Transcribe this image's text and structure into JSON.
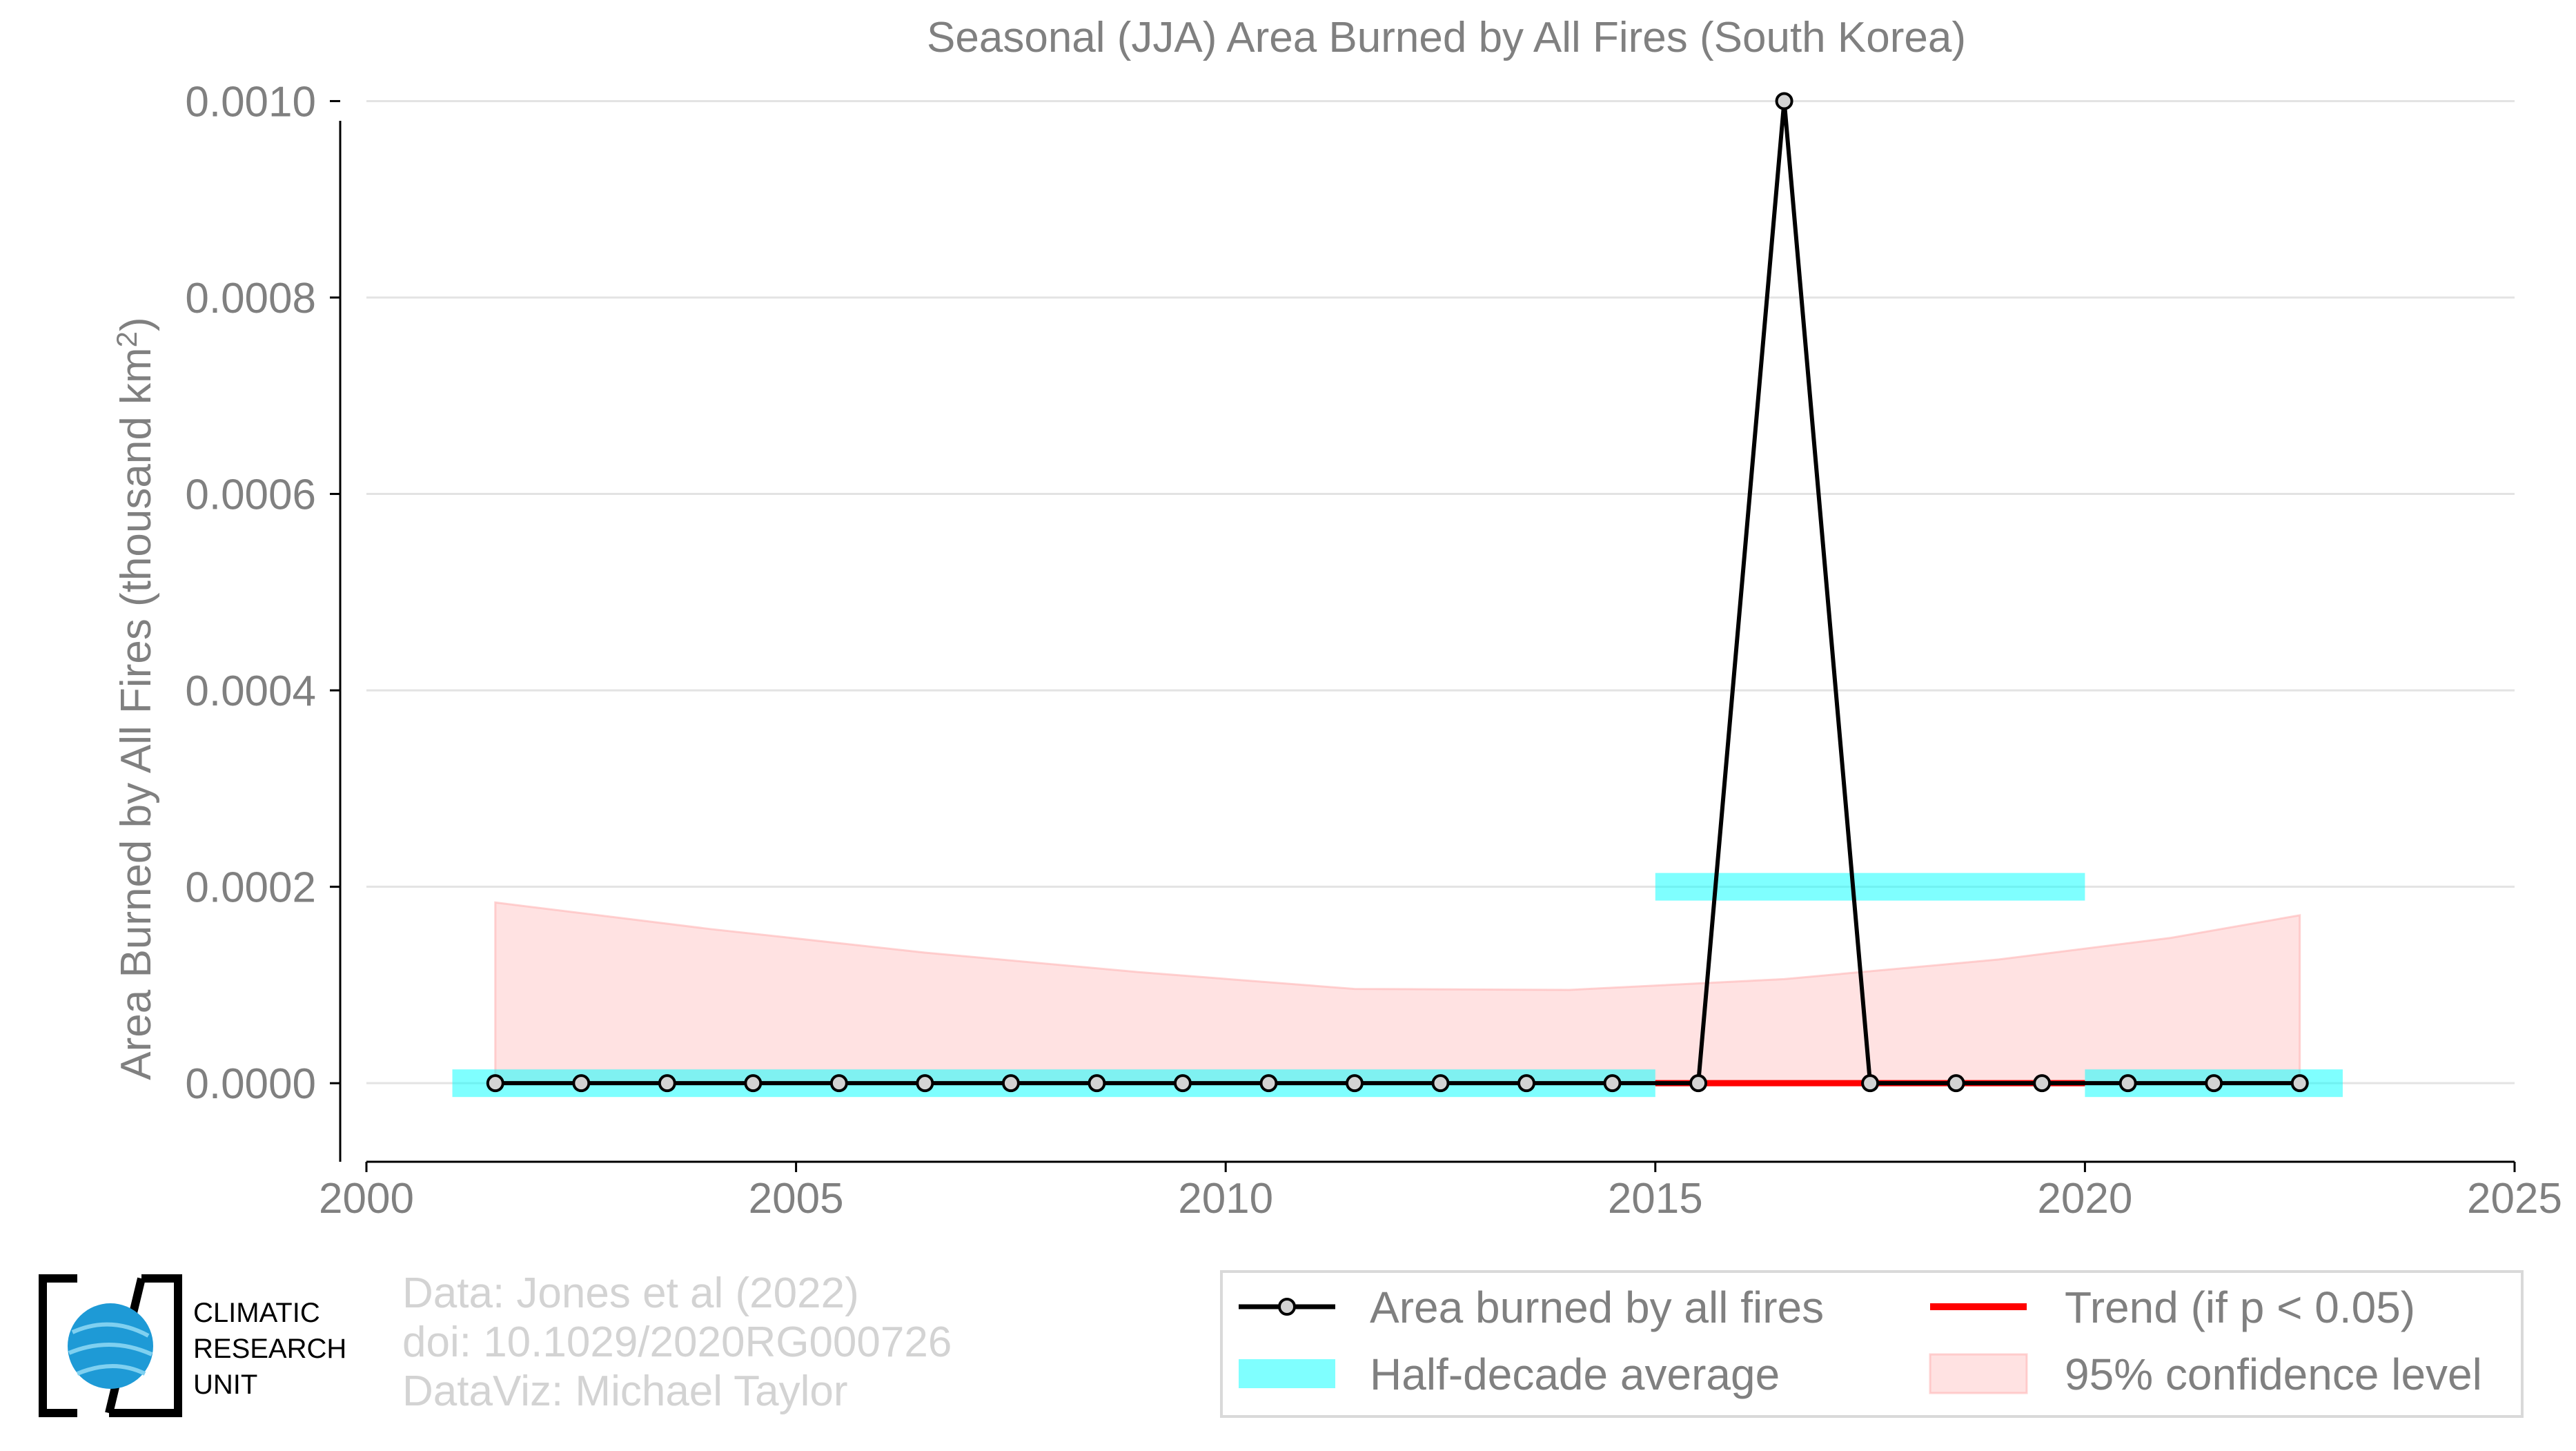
{
  "chart_data": {
    "type": "line",
    "title": "Seasonal (JJA) Area Burned by All Fires (South Korea)",
    "ylabel": "Area Burned by All Fires (thousand km",
    "ylabel_sup": "2",
    "ylabel_close": ")",
    "xlabel": "",
    "xlim": [
      2000,
      2025
    ],
    "ylim": [
      -8e-05,
      0.00102
    ],
    "x_ticks": [
      2000,
      2005,
      2010,
      2015,
      2020,
      2025
    ],
    "x_tick_labels": [
      "2000",
      "2005",
      "2010",
      "2015",
      "2020",
      "2025"
    ],
    "y_ticks": [
      0,
      0.0002,
      0.0004,
      0.0006,
      0.0008,
      0.001
    ],
    "y_tick_labels": [
      "0.0000",
      "0.0002",
      "0.0004",
      "0.0006",
      "0.0008",
      "0.0010"
    ],
    "grid": "horizontal",
    "series": [
      {
        "name": "Area burned by all fires",
        "color": "#000000",
        "x": [
          2001.5,
          2002.5,
          2003.5,
          2004.5,
          2005.5,
          2006.5,
          2007.5,
          2008.5,
          2009.5,
          2010.5,
          2011.5,
          2012.5,
          2013.5,
          2014.5,
          2015.5,
          2016.5,
          2017.5,
          2018.5,
          2019.5,
          2020.5,
          2021.5,
          2022.5
        ],
        "y": [
          0,
          0,
          0,
          0,
          0,
          0,
          0,
          0,
          0,
          0,
          0,
          0,
          0,
          0,
          0,
          0.001,
          0,
          0,
          0,
          0,
          0,
          0
        ]
      },
      {
        "name": "Half-decade average",
        "color": "#00ffff",
        "segments": [
          {
            "x0": 2001,
            "x1": 2015,
            "y": 0
          },
          {
            "x0": 2015,
            "x1": 2020,
            "y": 0.0002
          },
          {
            "x0": 2020,
            "x1": 2023,
            "y": 0
          }
        ]
      },
      {
        "name": "Trend (if p < 0.05)",
        "color": "#ff0000",
        "x": [
          2015,
          2020
        ],
        "y": [
          0,
          0
        ]
      },
      {
        "name": "95% confidence level",
        "color": "#ffb6b6",
        "x": [
          2001.5,
          2004,
          2006.5,
          2009,
          2011.5,
          2014,
          2016.5,
          2019,
          2021,
          2022.5
        ],
        "upper": [
          0.000184,
          0.000157,
          0.000133,
          0.000113,
          9.6e-05,
          9.5e-05,
          0.000106,
          0.000126,
          0.000148,
          0.000171
        ],
        "lower": [
          0,
          0,
          0,
          0,
          0,
          0,
          0,
          0,
          0,
          0
        ]
      }
    ],
    "legend": {
      "position": "bottom-right",
      "entries": [
        "Area burned by all fires",
        "Trend (if p < 0.05)",
        "Half-decade average",
        "95% confidence level"
      ]
    }
  },
  "credits": {
    "line1": "Data: Jones et al (2022)",
    "line2": "doi: 10.1029/2020RG000726",
    "line3": "DataViz: Michael Taylor"
  },
  "logo": {
    "line1": "CLIMATIC",
    "line2": "RESEARCH",
    "line3": "UNIT"
  }
}
